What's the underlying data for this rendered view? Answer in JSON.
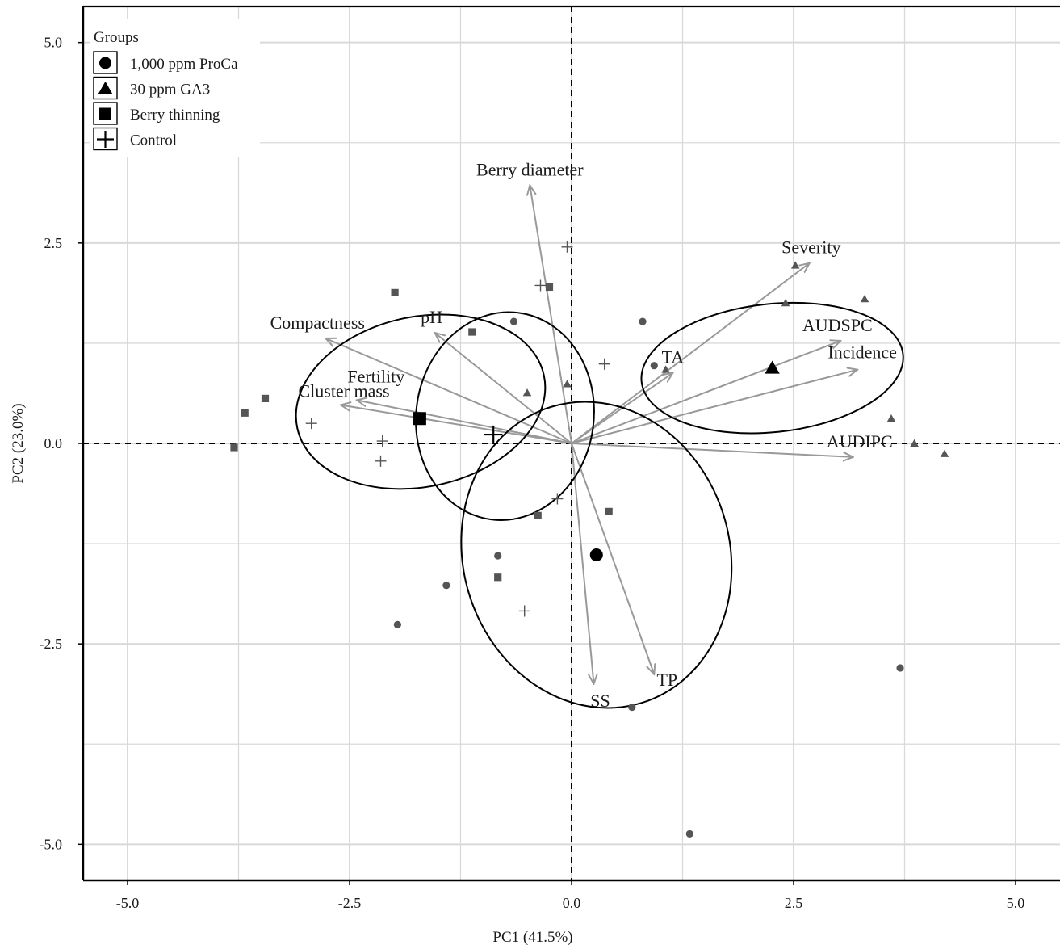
{
  "chart_data": {
    "type": "scatter",
    "subtype": "pca-biplot",
    "title": "",
    "xlabel": "PC1 (41.5%)",
    "ylabel": "PC2 (23.0%)",
    "xlim": [
      -5.5,
      5.5
    ],
    "ylim": [
      -5.45,
      5.45
    ],
    "xticks": [
      -5,
      -2.5,
      0,
      2.5,
      5
    ],
    "xtick_labels": [
      "-5.0",
      "-2.5",
      "0.0",
      "2.5",
      "5.0"
    ],
    "yticks": [
      -5,
      -2.5,
      0,
      2.5,
      5
    ],
    "ytick_labels": [
      "-5.0",
      "-2.5",
      "0.0",
      "2.5",
      "5.0"
    ],
    "grid": true,
    "reference_lines": [
      {
        "axis": "x",
        "value": 0,
        "style": "dashed"
      },
      {
        "axis": "y",
        "value": 0,
        "style": "dashed"
      }
    ],
    "legend": {
      "title": "Groups",
      "position": "top-left",
      "entries": [
        {
          "name": "1,000 ppm ProCa",
          "marker": "circle"
        },
        {
          "name": "30 ppm GA3",
          "marker": "triangle"
        },
        {
          "name": "Berry thinning",
          "marker": "square"
        },
        {
          "name": "Control",
          "marker": "plus"
        }
      ]
    },
    "colors": {
      "points": "#555555",
      "arrows": "#999999",
      "ellipse": "#000000",
      "centroid": "#000000",
      "axis": "#000000",
      "grid": "#d9d9d9"
    },
    "series": [
      {
        "name": "1,000 ppm ProCa",
        "marker": "circle",
        "points": [
          [
            0.8,
            1.52
          ],
          [
            -0.65,
            1.52
          ],
          [
            0.93,
            0.97
          ],
          [
            -0.83,
            -1.4
          ],
          [
            -1.41,
            -1.77
          ],
          [
            -1.96,
            -2.26
          ],
          [
            0.68,
            -3.29
          ],
          [
            3.7,
            -2.8
          ],
          [
            1.33,
            -4.87
          ]
        ],
        "centroid": [
          0.28,
          -1.39
        ],
        "ellipse": {
          "cx": 0.28,
          "cy": -1.39,
          "rx": 1.5,
          "ry": 1.93,
          "angle_deg": -17
        }
      },
      {
        "name": "30 ppm GA3",
        "marker": "triangle",
        "points": [
          [
            2.52,
            2.22
          ],
          [
            3.3,
            1.8
          ],
          [
            2.41,
            1.75
          ],
          [
            1.06,
            0.92
          ],
          [
            -0.05,
            0.74
          ],
          [
            -0.5,
            0.63
          ],
          [
            3.6,
            0.31
          ],
          [
            3.86,
            0
          ],
          [
            4.2,
            -0.13
          ]
        ],
        "centroid": [
          2.26,
          0.94
        ],
        "ellipse": {
          "cx": 2.26,
          "cy": 0.94,
          "rx": 1.48,
          "ry": 0.8,
          "angle_deg": -6
        }
      },
      {
        "name": "Berry thinning",
        "marker": "square",
        "points": [
          [
            -1.99,
            1.88
          ],
          [
            -0.25,
            1.95
          ],
          [
            -1.12,
            1.39
          ],
          [
            -3.45,
            0.56
          ],
          [
            -3.68,
            0.38
          ],
          [
            -3.8,
            -0.05
          ],
          [
            -0.38,
            -0.9
          ],
          [
            0.42,
            -0.85
          ],
          [
            -0.83,
            -1.67
          ]
        ],
        "centroid": [
          -1.71,
          0.31
        ],
        "ellipse": {
          "cx": -1.7,
          "cy": 0.52,
          "rx": 1.42,
          "ry": 1.06,
          "angle_deg": -12
        }
      },
      {
        "name": "Control",
        "marker": "plus",
        "points": [
          [
            -0.05,
            2.45
          ],
          [
            -0.35,
            1.97
          ],
          [
            0.37,
            0.99
          ],
          [
            -2.93,
            0.25
          ],
          [
            -2.13,
            0.03
          ],
          [
            -2.15,
            -0.22
          ],
          [
            -0.16,
            -0.69
          ],
          [
            -0.53,
            -2.09
          ]
        ],
        "centroid": [
          -0.88,
          0.11
        ],
        "ellipse": {
          "cx": -0.75,
          "cy": 0.34,
          "rx": 1.0,
          "ry": 1.3,
          "angle_deg": 8
        }
      }
    ],
    "loadings": [
      {
        "name": "Berry diameter",
        "x": -0.47,
        "y": 3.22
      },
      {
        "name": "Severity",
        "x": 2.68,
        "y": 2.25
      },
      {
        "name": "AUDSPC",
        "x": 3.03,
        "y": 1.28
      },
      {
        "name": "Incidence",
        "x": 3.22,
        "y": 0.92
      },
      {
        "name": "TA",
        "x": 1.14,
        "y": 0.88
      },
      {
        "name": "AUDIPC",
        "x": 3.17,
        "y": -0.17
      },
      {
        "name": "Compactness",
        "x": -2.77,
        "y": 1.31
      },
      {
        "name": "pH",
        "x": -1.54,
        "y": 1.38
      },
      {
        "name": "Fertility",
        "x": -2.42,
        "y": 0.54
      },
      {
        "name": "Cluster mass",
        "x": -2.6,
        "y": 0.48
      },
      {
        "name": "SS",
        "x": 0.25,
        "y": -3.0
      },
      {
        "name": "TP",
        "x": 0.93,
        "y": -2.88
      }
    ]
  }
}
